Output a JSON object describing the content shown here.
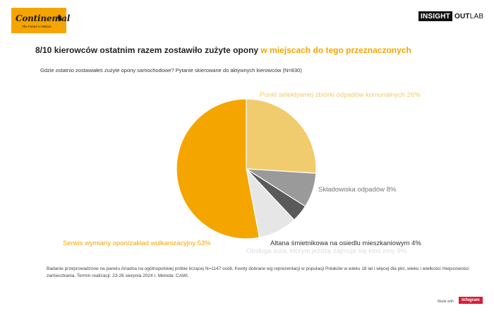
{
  "header": {
    "logo_text": "Continental",
    "logo_tagline": "The Future in Motion",
    "brand_part1": "INSIGHT",
    "brand_part2": "OUT",
    "brand_part3": "LAB"
  },
  "title": {
    "main": "8/10 kierowców ostatnim razem zostawiło zużyte opony",
    "highlight": "w miejscach do tego przeznaczonych"
  },
  "subtitle": "Gdzie ostatnio zostawiałeś zużyte opony samochodowe? Pytanie skierowane do aktywnych kierowców (N=830)",
  "footnote": "Badanie przeprowadzone na panelu Ariadna na ogólnopolskiej próbie liczącej N=1147 osób. Kwoty dobrane wg reprezentacji w populacji Polaków w wieku 18 lat i więcej dla płci, wieku i wielkości miejscowości zamieszkania. Termin realizacji: 23-26 sierpnia 2024 r. Metoda: CAWI.",
  "footer": {
    "made_with": "Made with",
    "badge": "infogram"
  },
  "colors": {
    "accent": "#f5a500",
    "logo_bg": "#f5a500",
    "badge": "#d21f3c"
  },
  "chart_data": {
    "type": "pie",
    "start": "12 o'clock, clockwise",
    "slices": [
      {
        "label": "Punkt selektywnej zbiórki odpadów komunalnych 26%",
        "value": 26,
        "color": "#f0cc6e"
      },
      {
        "label": "Składowiska odpadów 8%",
        "value": 8,
        "color": "#9a9a9a"
      },
      {
        "label": "Altana śmietnikowa na osiedlu mieszkaniowym 4%",
        "value": 4,
        "color": "#5a5a5a"
      },
      {
        "label": "Obsługa auta, którym jeżdżę zajmuje się ktoś inny 9%",
        "value": 9,
        "color": "#e6e6e6"
      },
      {
        "label": "Serwis wymiany opon/zakład wulkanizacyjny 53%",
        "value": 53,
        "color": "#f5a500"
      }
    ]
  }
}
